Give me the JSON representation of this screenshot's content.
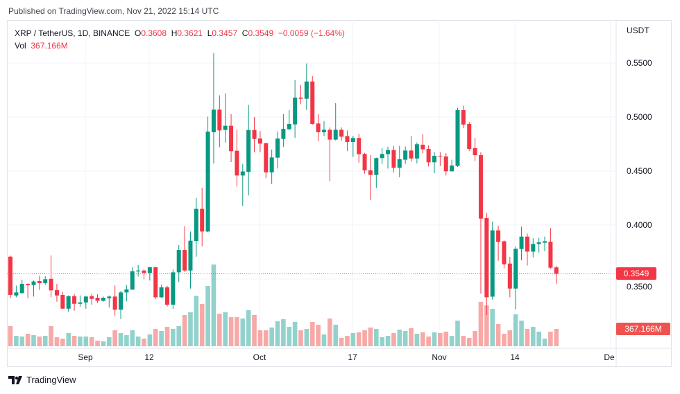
{
  "published": "Published on TradingView.com, Nov 21, 2022 15:14 UTC",
  "legend": {
    "symbol": "XRP / TetherUS, 1D, BINANCE",
    "o_label": "O",
    "o": "0.3608",
    "h_label": "H",
    "h": "0.3621",
    "l_label": "L",
    "l": "0.3457",
    "c_label": "C",
    "c": "0.3549",
    "change": "−0.0059 (−1.64%)",
    "vol_label": "Vol",
    "vol": "367.166M"
  },
  "price_axis": {
    "currency": "USDT",
    "ticks": [
      "0.5500",
      "0.5000",
      "0.4500",
      "0.4000",
      "0.3500"
    ],
    "last_price": "0.3549",
    "last_volume": "367.166M"
  },
  "time_axis": {
    "ticks": [
      "Sep",
      "12",
      "Oct",
      "17",
      "Nov",
      "14",
      "De"
    ]
  },
  "branding": {
    "logo_text": "TradingView"
  },
  "colors": {
    "up": "#089981",
    "down": "#f23645",
    "vol_up": "#26a69a",
    "vol_down": "#ef5350"
  },
  "chart_data": {
    "type": "candlestick",
    "title": "XRP / TetherUS, 1D, BINANCE",
    "ylabel": "USDT",
    "ylim": [
      0.3,
      0.57
    ],
    "grid": true,
    "columns": [
      "date",
      "open",
      "high",
      "low",
      "close",
      "volume_M"
    ],
    "candles": [
      [
        "2022-08-19",
        0.3707,
        0.3716,
        0.3323,
        0.3353,
        426
      ],
      [
        "2022-08-20",
        0.3348,
        0.344,
        0.3331,
        0.3376,
        220
      ],
      [
        "2022-08-21",
        0.337,
        0.3494,
        0.3365,
        0.3455,
        206
      ],
      [
        "2022-08-22",
        0.3455,
        0.3459,
        0.3323,
        0.3444,
        265
      ],
      [
        "2022-08-23",
        0.3444,
        0.3487,
        0.3338,
        0.3477,
        235
      ],
      [
        "2022-08-24",
        0.3481,
        0.353,
        0.34,
        0.3462,
        206
      ],
      [
        "2022-08-25",
        0.3462,
        0.3526,
        0.3445,
        0.3498,
        220
      ],
      [
        "2022-08-26",
        0.3502,
        0.3718,
        0.3331,
        0.3395,
        426
      ],
      [
        "2022-08-27",
        0.3397,
        0.3455,
        0.329,
        0.3348,
        191
      ],
      [
        "2022-08-28",
        0.3353,
        0.338,
        0.3222,
        0.3226,
        162
      ],
      [
        "2022-08-29",
        0.3226,
        0.3348,
        0.3199,
        0.3342,
        279
      ],
      [
        "2022-08-30",
        0.3342,
        0.3363,
        0.3207,
        0.3271,
        220
      ],
      [
        "2022-08-31",
        0.3271,
        0.3348,
        0.3246,
        0.3284,
        206
      ],
      [
        "2022-09-01",
        0.3284,
        0.3342,
        0.3226,
        0.3338,
        206
      ],
      [
        "2022-09-02",
        0.3342,
        0.3363,
        0.3263,
        0.3316,
        191
      ],
      [
        "2022-09-03",
        0.3327,
        0.3359,
        0.3278,
        0.3299,
        118
      ],
      [
        "2022-09-04",
        0.3299,
        0.3338,
        0.329,
        0.3327,
        103
      ],
      [
        "2022-09-05",
        0.3323,
        0.3348,
        0.3237,
        0.3338,
        191
      ],
      [
        "2022-09-06",
        0.3338,
        0.344,
        0.3162,
        0.3216,
        338
      ],
      [
        "2022-09-07",
        0.3216,
        0.3391,
        0.313,
        0.3376,
        279
      ],
      [
        "2022-09-08",
        0.3376,
        0.3445,
        0.3295,
        0.3404,
        235
      ],
      [
        "2022-09-09",
        0.3402,
        0.3609,
        0.34,
        0.3573,
        338
      ],
      [
        "2022-09-10",
        0.3571,
        0.3631,
        0.3524,
        0.3579,
        206
      ],
      [
        "2022-09-11",
        0.3579,
        0.359,
        0.3498,
        0.3558,
        162
      ],
      [
        "2022-09-12",
        0.3558,
        0.3612,
        0.3487,
        0.3609,
        250
      ],
      [
        "2022-09-13",
        0.3609,
        0.3615,
        0.3316,
        0.3331,
        368
      ],
      [
        "2022-09-14",
        0.3331,
        0.3449,
        0.3323,
        0.3423,
        323
      ],
      [
        "2022-09-15",
        0.3423,
        0.3438,
        0.3246,
        0.3263,
        412
      ],
      [
        "2022-09-16",
        0.3263,
        0.3588,
        0.3224,
        0.3562,
        368
      ],
      [
        "2022-09-17",
        0.3562,
        0.3814,
        0.3472,
        0.3769,
        426
      ],
      [
        "2022-09-18",
        0.3769,
        0.3989,
        0.3566,
        0.3579,
        662
      ],
      [
        "2022-09-19",
        0.3579,
        0.394,
        0.3412,
        0.3855,
        720
      ],
      [
        "2022-09-20",
        0.3852,
        0.425,
        0.3707,
        0.415,
        1073
      ],
      [
        "2022-09-21",
        0.415,
        0.4346,
        0.3804,
        0.394,
        897
      ],
      [
        "2022-09-22",
        0.394,
        0.5004,
        0.3935,
        0.4865,
        1279
      ],
      [
        "2022-09-23",
        0.4859,
        0.5592,
        0.457,
        0.5068,
        1735
      ],
      [
        "2022-09-24",
        0.5068,
        0.5201,
        0.472,
        0.4876,
        691
      ],
      [
        "2022-09-25",
        0.488,
        0.5218,
        0.4763,
        0.4919,
        720
      ],
      [
        "2022-09-26",
        0.4919,
        0.5026,
        0.4583,
        0.4684,
        617
      ],
      [
        "2022-09-27",
        0.4688,
        0.4883,
        0.4357,
        0.4459,
        617
      ],
      [
        "2022-09-28",
        0.4459,
        0.4566,
        0.4177,
        0.4496,
        588
      ],
      [
        "2022-09-29",
        0.4492,
        0.5111,
        0.4274,
        0.488,
        764
      ],
      [
        "2022-09-30",
        0.488,
        0.5,
        0.4673,
        0.4797,
        662
      ],
      [
        "2022-10-01",
        0.4801,
        0.487,
        0.4673,
        0.4754,
        338
      ],
      [
        "2022-10-02",
        0.4758,
        0.476,
        0.4434,
        0.4487,
        338
      ],
      [
        "2022-10-03",
        0.4487,
        0.4699,
        0.438,
        0.4626,
        397
      ],
      [
        "2022-10-04",
        0.4624,
        0.4865,
        0.4523,
        0.4801,
        529
      ],
      [
        "2022-10-05",
        0.4797,
        0.5026,
        0.4722,
        0.4891,
        573
      ],
      [
        "2022-10-06",
        0.4887,
        0.5064,
        0.488,
        0.4936,
        412
      ],
      [
        "2022-10-07",
        0.4932,
        0.5342,
        0.4808,
        0.518,
        515
      ],
      [
        "2022-10-08",
        0.518,
        0.5297,
        0.5118,
        0.5169,
        338
      ],
      [
        "2022-10-09",
        0.5169,
        0.5496,
        0.5066,
        0.5329,
        368
      ],
      [
        "2022-10-10",
        0.5329,
        0.5378,
        0.493,
        0.4936,
        515
      ],
      [
        "2022-10-11",
        0.494,
        0.5026,
        0.4776,
        0.4859,
        456
      ],
      [
        "2022-10-12",
        0.4859,
        0.4962,
        0.4823,
        0.4882,
        250
      ],
      [
        "2022-10-13",
        0.4882,
        0.4904,
        0.4406,
        0.4791,
        588
      ],
      [
        "2022-10-14",
        0.4791,
        0.5128,
        0.4784,
        0.4882,
        456
      ],
      [
        "2022-10-15",
        0.4882,
        0.4904,
        0.478,
        0.4818,
        176
      ],
      [
        "2022-10-16",
        0.4823,
        0.4876,
        0.4684,
        0.4769,
        220
      ],
      [
        "2022-10-17",
        0.4769,
        0.4827,
        0.463,
        0.4806,
        279
      ],
      [
        "2022-10-18",
        0.4806,
        0.4844,
        0.4577,
        0.4656,
        294
      ],
      [
        "2022-10-19",
        0.4658,
        0.4669,
        0.4476,
        0.4506,
        338
      ],
      [
        "2022-10-20",
        0.4506,
        0.4647,
        0.4231,
        0.4464,
        397
      ],
      [
        "2022-10-21",
        0.4464,
        0.4625,
        0.4342,
        0.462,
        368
      ],
      [
        "2022-10-22",
        0.462,
        0.4711,
        0.4566,
        0.4658,
        191
      ],
      [
        "2022-10-23",
        0.4656,
        0.4726,
        0.4523,
        0.4694,
        220
      ],
      [
        "2022-10-24",
        0.4694,
        0.4733,
        0.4487,
        0.453,
        279
      ],
      [
        "2022-10-25",
        0.453,
        0.4733,
        0.4442,
        0.4609,
        353
      ],
      [
        "2022-10-26",
        0.4605,
        0.4727,
        0.4566,
        0.469,
        323
      ],
      [
        "2022-10-27",
        0.469,
        0.4827,
        0.4588,
        0.4616,
        382
      ],
      [
        "2022-10-28",
        0.4616,
        0.4765,
        0.457,
        0.4748,
        265
      ],
      [
        "2022-10-29",
        0.4744,
        0.484,
        0.4662,
        0.4701,
        294
      ],
      [
        "2022-10-30",
        0.4705,
        0.4737,
        0.4541,
        0.4581,
        206
      ],
      [
        "2022-10-31",
        0.4581,
        0.4677,
        0.4481,
        0.4641,
        294
      ],
      [
        "2022-11-01",
        0.4641,
        0.4673,
        0.4545,
        0.4635,
        279
      ],
      [
        "2022-11-02",
        0.4635,
        0.4667,
        0.4459,
        0.4498,
        309
      ],
      [
        "2022-11-03",
        0.4498,
        0.4605,
        0.4495,
        0.4551,
        220
      ],
      [
        "2022-11-04",
        0.4547,
        0.5086,
        0.4538,
        0.5064,
        544
      ],
      [
        "2022-11-05",
        0.5064,
        0.5105,
        0.4898,
        0.493,
        220
      ],
      [
        "2022-11-06",
        0.4936,
        0.4955,
        0.4684,
        0.4705,
        176
      ],
      [
        "2022-11-07",
        0.4712,
        0.4806,
        0.4592,
        0.4647,
        323
      ],
      [
        "2022-11-08",
        0.4647,
        0.4673,
        0.3365,
        0.406,
        941
      ],
      [
        "2022-11-09",
        0.4064,
        0.4113,
        0.3167,
        0.3331,
        867
      ],
      [
        "2022-11-10",
        0.3337,
        0.4032,
        0.331,
        0.3951,
        794
      ],
      [
        "2022-11-11",
        0.3951,
        0.3994,
        0.3669,
        0.3844,
        470
      ],
      [
        "2022-11-12",
        0.385,
        0.3857,
        0.36,
        0.3637,
        265
      ],
      [
        "2022-11-13",
        0.3643,
        0.3705,
        0.3331,
        0.3412,
        338
      ],
      [
        "2022-11-14",
        0.3412,
        0.3801,
        0.322,
        0.378,
        676
      ],
      [
        "2022-11-15",
        0.3778,
        0.3985,
        0.3673,
        0.3893,
        544
      ],
      [
        "2022-11-16",
        0.3893,
        0.3921,
        0.3626,
        0.3754,
        368
      ],
      [
        "2022-11-17",
        0.3754,
        0.3878,
        0.3701,
        0.3825,
        412
      ],
      [
        "2022-11-18",
        0.3825,
        0.3882,
        0.3744,
        0.384,
        309
      ],
      [
        "2022-11-19",
        0.3836,
        0.3893,
        0.3759,
        0.385,
        162
      ],
      [
        "2022-11-20",
        0.3846,
        0.3972,
        0.3594,
        0.3605,
        309
      ],
      [
        "2022-11-21",
        0.3608,
        0.3621,
        0.3457,
        0.3549,
        367.166
      ]
    ]
  }
}
